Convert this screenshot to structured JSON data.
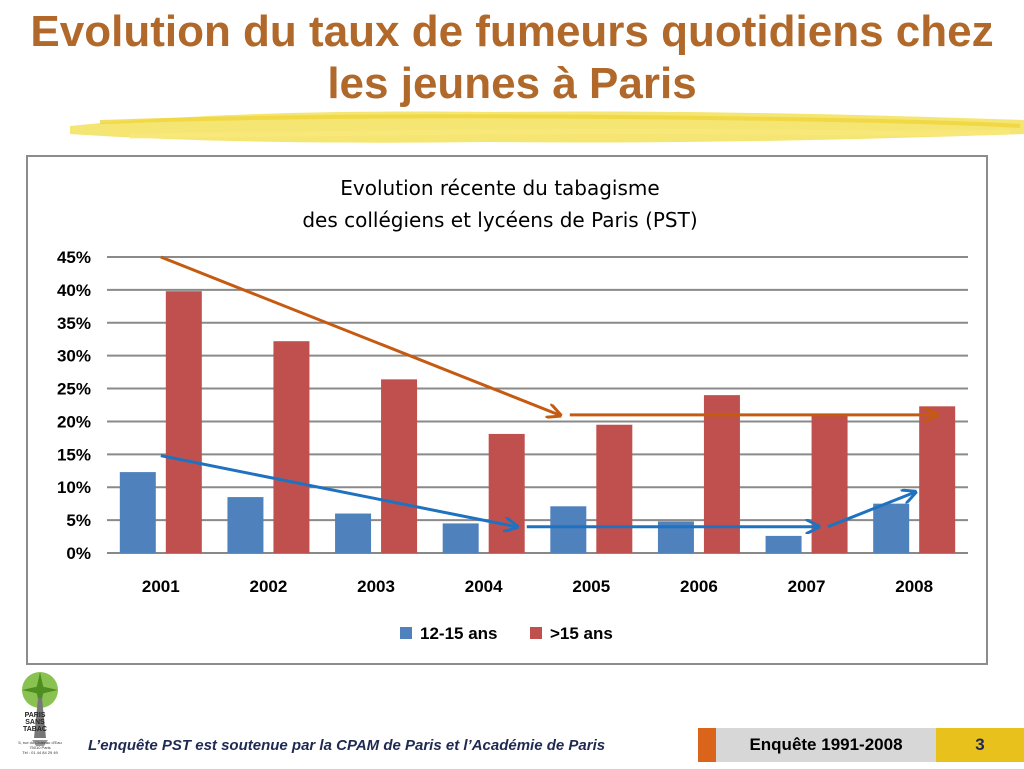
{
  "slide": {
    "title": "Evolution du taux de fumeurs quotidiens chez les jeunes à Paris"
  },
  "chart_data": {
    "type": "bar",
    "title_line1": "Evolution récente du tabagisme",
    "title_line2": "des collégiens et lycéens de Paris  (PST)",
    "categories": [
      "2001",
      "2002",
      "2003",
      "2004",
      "2005",
      "2006",
      "2007",
      "2008"
    ],
    "series": [
      {
        "name": "12-15 ans",
        "color": "#4F81BD",
        "values": [
          0.123,
          0.085,
          0.06,
          0.045,
          0.071,
          0.048,
          0.026,
          0.075
        ]
      },
      {
        "name": ">15 ans",
        "color": "#C0504D",
        "values": [
          0.398,
          0.322,
          0.264,
          0.181,
          0.195,
          0.24,
          0.209,
          0.223
        ]
      }
    ],
    "ylim": [
      0,
      0.45
    ],
    "ytick_labels": [
      "0%",
      "5%",
      "10%",
      "15%",
      "20%",
      "25%",
      "30%",
      "35%",
      "40%",
      "45%"
    ],
    "grid": true,
    "legend_position": "bottom",
    "trend_arrows": [
      {
        "color": "#C55A11",
        "points": [
          [
            0.5,
            0.45
          ],
          [
            4.2,
            0.21
          ]
        ],
        "arrow": true
      },
      {
        "color": "#C55A11",
        "points": [
          [
            4.3,
            0.21
          ],
          [
            7.7,
            0.21
          ]
        ],
        "arrow": true
      },
      {
        "color": "#1F72C0",
        "points": [
          [
            0.5,
            0.148
          ],
          [
            3.8,
            0.04
          ]
        ],
        "arrow": true
      },
      {
        "color": "#1F72C0",
        "points": [
          [
            3.9,
            0.04
          ],
          [
            6.6,
            0.04
          ]
        ],
        "arrow": true
      },
      {
        "color": "#1F72C0",
        "points": [
          [
            6.7,
            0.04
          ],
          [
            7.5,
            0.092
          ]
        ],
        "arrow": true
      }
    ]
  },
  "footer": {
    "support_text": "L’enquête PST est soutenue par la CPAM de Paris et l’Académie de Paris",
    "survey_label": "Enquête 1991-2008",
    "page_number": "3"
  },
  "logo": {
    "text_lines": [
      "PARIS",
      "SANS",
      "TABAC"
    ],
    "address": "5, rue du Château d’Eau\n75010 Paris\nTél : 01 44 84 29 49"
  }
}
